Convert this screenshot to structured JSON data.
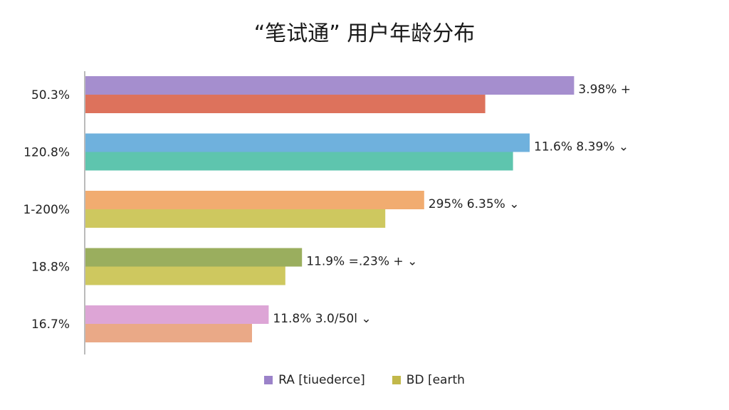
{
  "chart_data": {
    "type": "bar",
    "orientation": "horizontal",
    "title": "“笔试通” 用户年龄分布",
    "categories": [
      "50.3%",
      "120.8%",
      "1-200%",
      "18.8%",
      "16.7%"
    ],
    "series": [
      {
        "name": "RA [tiuederce]",
        "color": "#9b82c9",
        "values": [
          88,
          80,
          61,
          39,
          33
        ]
      },
      {
        "name": "BD [earth",
        "color": "#c2b84a",
        "values": [
          72,
          77,
          54,
          36,
          30
        ]
      }
    ],
    "row_colors": [
      [
        "#9b82c9",
        "#d9634a"
      ],
      [
        "#5fa9d9",
        "#4dbfa5"
      ],
      [
        "#efa361",
        "#c9c24e"
      ],
      [
        "#8fa54c",
        "#c9c24e"
      ],
      [
        "#d99bd1",
        "#e8a07a"
      ]
    ],
    "data_labels": [
      "3.98% +",
      "11.6% 8.39% ⌄",
      "295% 6.35% ⌄",
      "11.9% =.23% + ⌄",
      "11.8% 3.0/50l ⌄"
    ],
    "xlim": [
      0,
      100
    ],
    "grid": false,
    "legend_position": "bottom"
  }
}
